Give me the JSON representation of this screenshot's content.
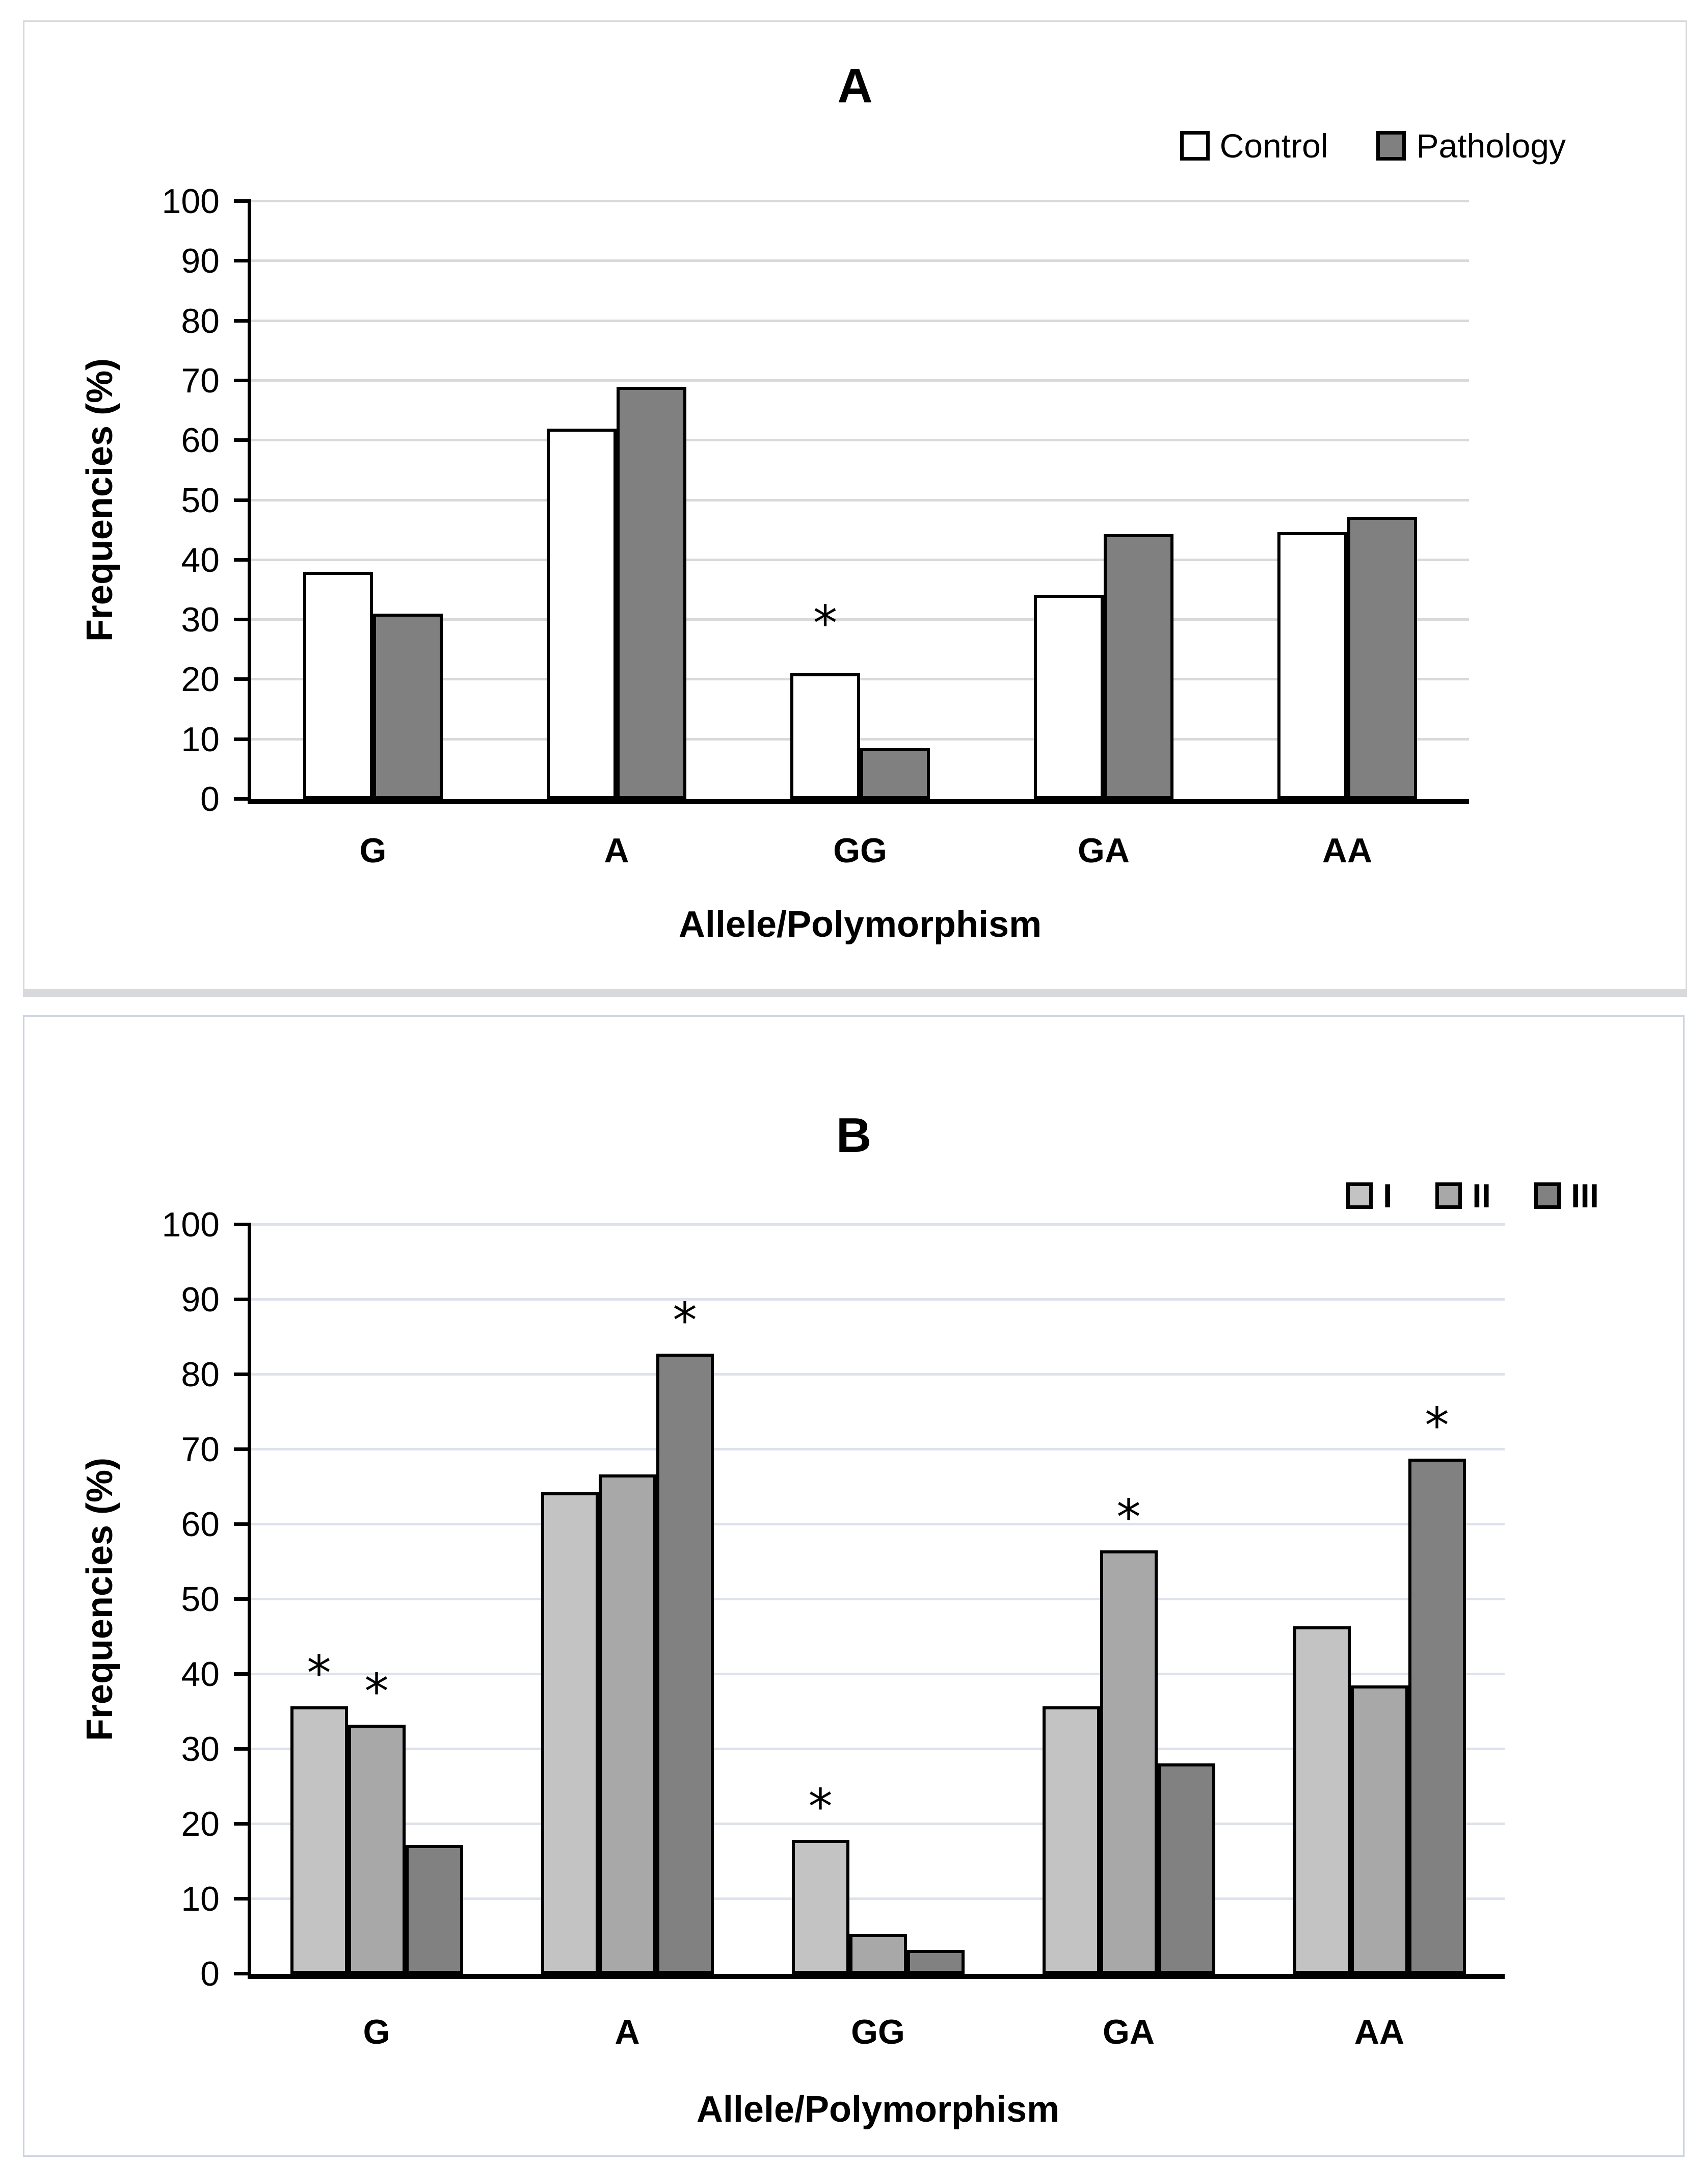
{
  "figure": {
    "background": "#ffffff",
    "panel_a_border_color": "#d9d9d9",
    "panel_b_border_color": "#cdd5e1"
  },
  "chart_data": [
    {
      "type": "bar",
      "panel_label": "A",
      "title": "A",
      "ylabel": "Frequencies (%)",
      "xlabel": "Allele/Polymorphism",
      "ylim": [
        0,
        100
      ],
      "ytick_step": 10,
      "grid": true,
      "gridline_color": "#d9d9d9",
      "legend_position": "top-right",
      "categories": [
        "G",
        "A",
        "GG",
        "GA",
        "AA"
      ],
      "series": [
        {
          "name": "Control",
          "fill": "#ffffff",
          "values": [
            38,
            62,
            21.1,
            34.2,
            44.7
          ]
        },
        {
          "name": "Pathology",
          "fill": "#808080",
          "values": [
            31,
            69,
            8.5,
            44.3,
            47.2
          ]
        }
      ],
      "annotations": [
        {
          "category": "GG",
          "series": "Control",
          "symbol": "*"
        }
      ]
    },
    {
      "type": "bar",
      "panel_label": "B",
      "title": "B",
      "ylabel": "Frequencies (%)",
      "xlabel": "Allele/Polymorphism",
      "ylim": [
        0,
        100
      ],
      "ytick_step": 10,
      "grid": true,
      "gridline_color": "#dde2ec",
      "legend_position": "top-right",
      "categories": [
        "G",
        "A",
        "GG",
        "GA",
        "AA"
      ],
      "series": [
        {
          "name": "I",
          "fill": "#c3c3c3",
          "values": [
            35.7,
            64.3,
            17.9,
            35.7,
            46.4
          ]
        },
        {
          "name": "II",
          "fill": "#a8a8a8",
          "values": [
            33.3,
            66.7,
            5.3,
            56.5,
            38.5
          ]
        },
        {
          "name": "III",
          "fill": "#818181",
          "values": [
            17.2,
            82.8,
            3.2,
            28.1,
            68.8
          ]
        }
      ],
      "annotations": [
        {
          "category": "G",
          "series": "I",
          "symbol": "*"
        },
        {
          "category": "G",
          "series": "II",
          "symbol": "*"
        },
        {
          "category": "A",
          "series": "III",
          "symbol": "*"
        },
        {
          "category": "GG",
          "series": "I",
          "symbol": "*"
        },
        {
          "category": "GA",
          "series": "II",
          "symbol": "*"
        },
        {
          "category": "AA",
          "series": "III",
          "symbol": "*"
        }
      ]
    }
  ]
}
